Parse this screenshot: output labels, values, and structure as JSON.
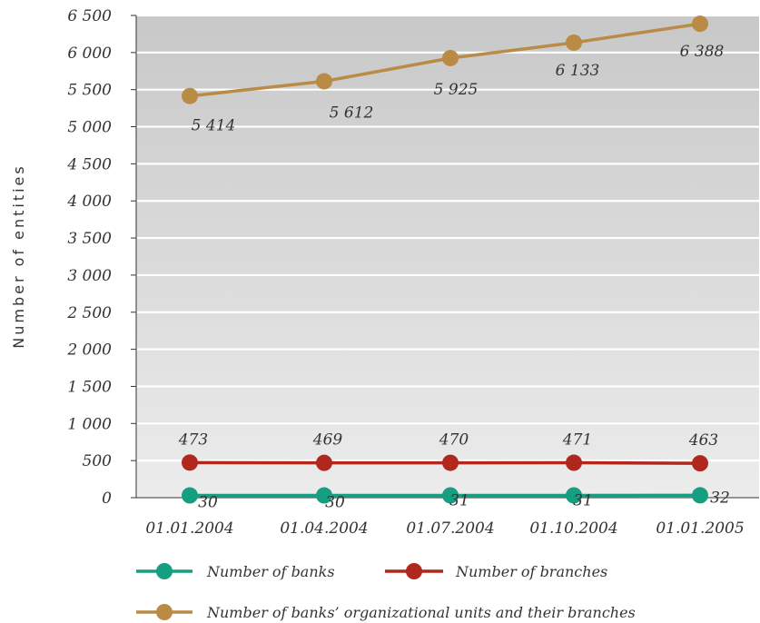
{
  "chart_data": {
    "type": "line",
    "categories": [
      "01.01.2004",
      "01.04.2004",
      "01.07.2004",
      "01.10.2004",
      "01.01.2005"
    ],
    "ylabel": "Number of entities",
    "ylim": [
      0,
      6500
    ],
    "yticks": [
      0,
      500,
      1000,
      1500,
      2000,
      2500,
      3000,
      3500,
      4000,
      4500,
      5000,
      5500,
      6000,
      6500
    ],
    "ytick_labels": [
      "0",
      "500",
      "1 000",
      "1 500",
      "2 000",
      "2 500",
      "3 000",
      "3 500",
      "4 000",
      "4 500",
      "5 000",
      "5 500",
      "6 000",
      "6 500"
    ],
    "grid": true,
    "legend_position": "bottom",
    "series": [
      {
        "name": "Number of banks",
        "color": "#159e80",
        "values": [
          30,
          30,
          31,
          31,
          32
        ],
        "labels": [
          "30",
          "30",
          "31",
          "31",
          "32"
        ]
      },
      {
        "name": "Number of branches",
        "color": "#b0271d",
        "values": [
          473,
          469,
          470,
          471,
          463
        ],
        "labels": [
          "473",
          "469",
          "470",
          "471",
          "463"
        ]
      },
      {
        "name": "Number of banks’ organizational units and their branches",
        "color": "#b98b45",
        "values": [
          5414,
          5612,
          5925,
          6133,
          6388
        ],
        "labels": [
          "5 414",
          "5 612",
          "5 925",
          "6 133",
          "6 388"
        ]
      }
    ]
  }
}
